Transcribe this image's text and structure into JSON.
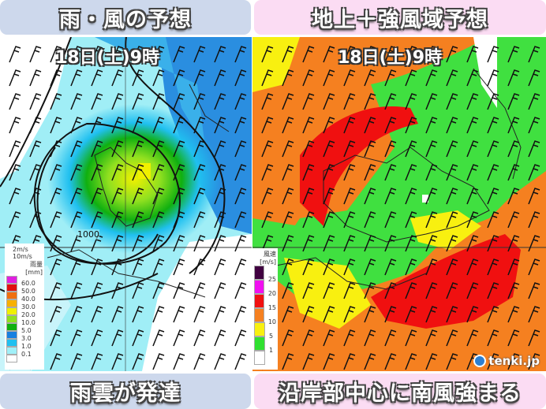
{
  "left": {
    "title": "雨・風の予想",
    "date": "18日(土)9時",
    "isobar_label": "1000",
    "wind_legend": [
      "2m/s",
      "10m/s"
    ],
    "legend": {
      "title": "雨量",
      "unit": "[mm]",
      "labels": [
        "60.0",
        "50.0",
        "40.0",
        "30.0",
        "20.0",
        "10.0",
        "5.0",
        "3.0",
        "1.0",
        "0.1"
      ],
      "colors": [
        "#e020e0",
        "#e01010",
        "#f07010",
        "#f8b000",
        "#f0f000",
        "#90e020",
        "#10b010",
        "#1880e0",
        "#20c0f0",
        "#a0f0f8",
        "#ffffff"
      ]
    },
    "caption": "雨雲が発達"
  },
  "right": {
    "title": "地上＋強風域予想",
    "date": "18日(土)9時",
    "legend": {
      "title": "風速",
      "unit": "[m/s]",
      "labels": [
        "25",
        "20",
        "15",
        "10",
        "5",
        "1"
      ],
      "colors": [
        "#400040",
        "#f010f0",
        "#f01010",
        "#f58020",
        "#f8f010",
        "#30e030",
        "#ffffff"
      ]
    },
    "caption": "沿岸部中心に南風強まる",
    "brand": "tenki.jp"
  }
}
